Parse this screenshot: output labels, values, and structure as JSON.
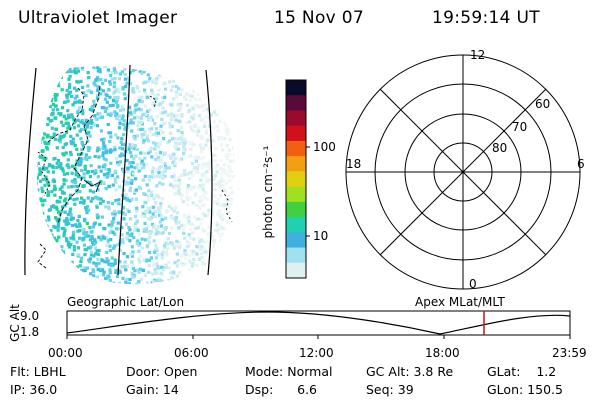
{
  "header": {
    "instrument": "Ultraviolet Imager",
    "date": "15 Nov 07",
    "time": "19:59:14 UT"
  },
  "colorbar": {
    "unit_label": "photon cm⁻²s⁻¹",
    "ticks": [
      "100",
      "10"
    ],
    "colors": [
      "#0a0a2a",
      "#5a0a3a",
      "#9a0a2a",
      "#d0101a",
      "#f06010",
      "#f0a010",
      "#e0d010",
      "#a0e020",
      "#40d040",
      "#20d0b0",
      "#40b0e0",
      "#a0e0f0",
      "#e0f0f0"
    ]
  },
  "polar_plot": {
    "hour_labels": {
      "top": "12",
      "left": "18",
      "right": "6",
      "bottom": "0"
    },
    "lat_labels": [
      "60",
      "70",
      "80"
    ]
  },
  "altitude_plot": {
    "left_title": "Geographic Lat/Lon",
    "right_title": "Apex MLat/MLT",
    "axis_label": "GC Alt",
    "y_ticks": [
      "9.0",
      "1.8"
    ],
    "x_ticks": [
      "00:00",
      "06:00",
      "12:00",
      "18:00",
      "23:59"
    ],
    "marker_color": "#d01010"
  },
  "footer": {
    "row1": {
      "flt": "Flt: LBHL",
      "door": "Door: Open",
      "mode": "Mode: Normal",
      "gcalt": "GC Alt: 3.8 Re",
      "glat": "GLat:    1.2"
    },
    "row2": {
      "ip": "IP: 36.0",
      "gain": "Gain: 14",
      "dsp": "Dsp:      6.6",
      "seq": "Seq: 39",
      "glon": "GLon: 150.5"
    }
  }
}
